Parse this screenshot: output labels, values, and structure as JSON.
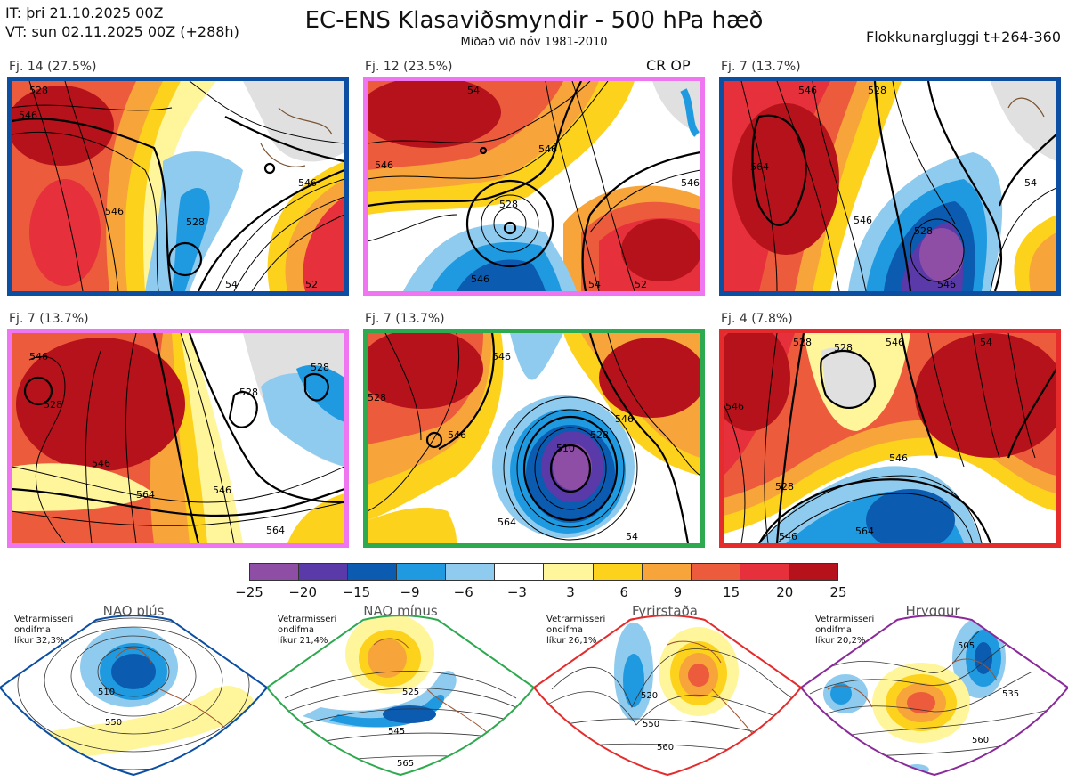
{
  "header": {
    "init_time": "IT: þri 21.10.2025 00Z",
    "valid_time": "VT: sun 02.11.2025 00Z  (+288h)",
    "title": "EC-ENS Klasaviðsmyndir - 500 hPa hæð",
    "subtitle": "Miðað við nóv 1981-2010",
    "window": "Flokkunargluggi t+264-360"
  },
  "op_label": "CR OP",
  "panels": [
    {
      "label": "Fj. 14 (27.5%)",
      "frame_color": "#0b4ea2",
      "regime": "NAO plús",
      "contour_values": [
        "528",
        "546",
        "546",
        "528",
        "546",
        "54",
        "52"
      ]
    },
    {
      "label": "Fj. 12 (23.5%)",
      "frame_color": "#f075f0",
      "regime": "Hryggur",
      "contour_values": [
        "54",
        "546",
        "546",
        "528",
        "546",
        "54",
        "52",
        "546"
      ]
    },
    {
      "label": "Fj. 7 (13.7%)",
      "frame_color": "#0b4ea2",
      "regime": "NAO plús",
      "contour_values": [
        "546",
        "528",
        "564",
        "546",
        "528",
        "546",
        "54"
      ]
    },
    {
      "label": "Fj. 7 (13.7%)",
      "frame_color": "#f075f0",
      "regime": "Hryggur",
      "contour_values": [
        "546",
        "528",
        "546",
        "528",
        "546",
        "564",
        "564",
        "528"
      ]
    },
    {
      "label": "Fj. 7 (13.7%)",
      "frame_color": "#2da94f",
      "regime": "NAO mínus",
      "contour_values": [
        "546",
        "528",
        "546",
        "546",
        "510",
        "528",
        "564",
        "54"
      ]
    },
    {
      "label": "Fj. 4 (7.8%)",
      "frame_color": "#e52b2b",
      "regime": "Fyrirstaða",
      "contour_values": [
        "528",
        "546",
        "528",
        "546",
        "528",
        "54",
        "546",
        "564",
        "546"
      ]
    }
  ],
  "colorbar": {
    "colors": [
      "#8e4ea6",
      "#5a39a8",
      "#0b5bb0",
      "#1f9ae0",
      "#8ecbef",
      "#ffffff",
      "#fff59a",
      "#fdd21c",
      "#f7a43a",
      "#ec5b3c",
      "#e6303b",
      "#b5121b"
    ],
    "ticks": [
      "−25",
      "−20",
      "−15",
      "−9",
      "−6",
      "−3",
      "3",
      "6",
      "9",
      "15",
      "20",
      "25"
    ]
  },
  "regimes": [
    {
      "name": "NAO plús",
      "color": "#0b4ea2",
      "note": [
        "Vetrarmisseri",
        "ondifma",
        "líkur 32,3%"
      ],
      "contour_values": [
        "510",
        "550"
      ]
    },
    {
      "name": "NAO mínus",
      "color": "#2da94f",
      "note": [
        "Vetrarmisseri",
        "ondifma",
        "líkur 21,4%"
      ],
      "contour_values": [
        "525",
        "545",
        "565"
      ]
    },
    {
      "name": "Fyrirstaða",
      "color": "#e52b2b",
      "note": [
        "Vetrarmisseri",
        "ondifma",
        "líkur 26,1%"
      ],
      "contour_values": [
        "520",
        "550",
        "560"
      ]
    },
    {
      "name": "Hryggur",
      "color": "#f075f0",
      "note": [
        "Vetrarmisseri",
        "ondifma",
        "líkur 20,2%"
      ],
      "contour_values": [
        "505",
        "535",
        "560"
      ]
    }
  ]
}
